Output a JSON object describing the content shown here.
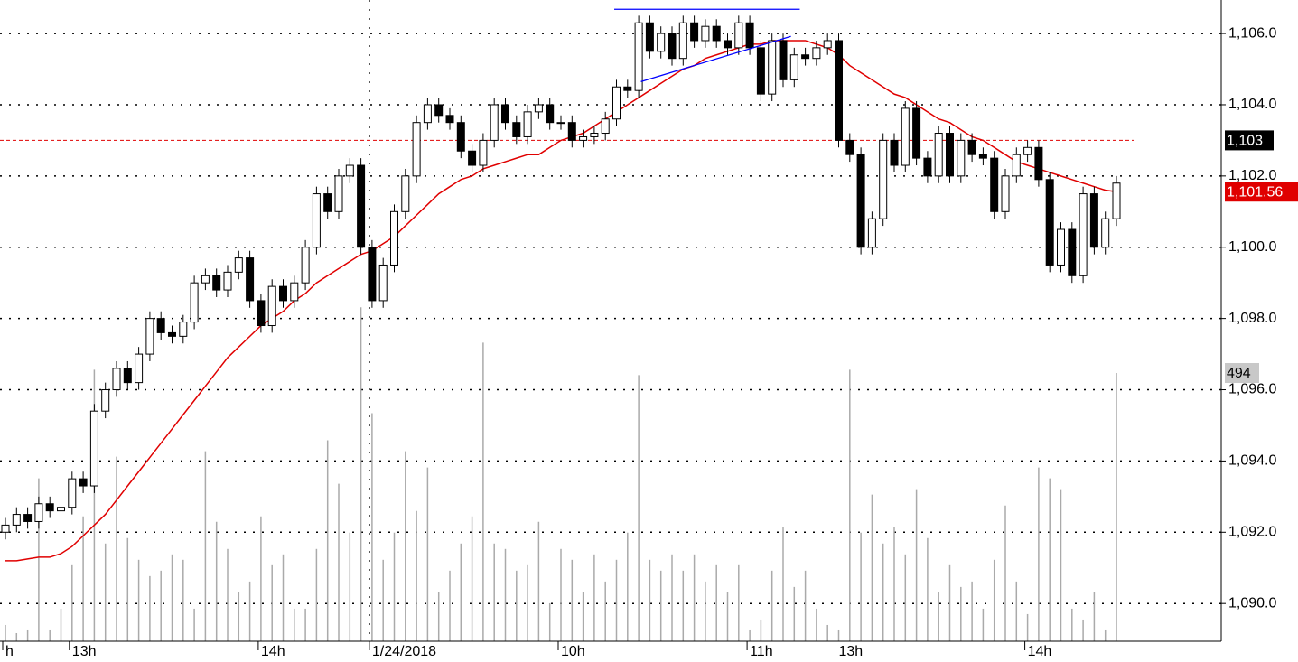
{
  "chart_data": {
    "type": "candlestick",
    "categories": [
      "h",
      null,
      null,
      null,
      null,
      null,
      "13h",
      null,
      null,
      null,
      null,
      null,
      null,
      null,
      null,
      null,
      null,
      null,
      null,
      null,
      null,
      null,
      null,
      "14h",
      null,
      null,
      null,
      null,
      null,
      null,
      null,
      null,
      null,
      "1/24/2018",
      null,
      null,
      null,
      null,
      null,
      null,
      null,
      null,
      null,
      null,
      null,
      null,
      null,
      null,
      null,
      null,
      "10h",
      null,
      null,
      null,
      null,
      null,
      null,
      null,
      null,
      null,
      null,
      null,
      null,
      null,
      null,
      null,
      null,
      "11h",
      null,
      null,
      null,
      null,
      null,
      null,
      null,
      "13h",
      null,
      null,
      null,
      null,
      null,
      null,
      null,
      null,
      null,
      null,
      null,
      null,
      null,
      null,
      null,
      null,
      "14h",
      null,
      null,
      null,
      null,
      null,
      null,
      null,
      null
    ],
    "open": [
      1092.0,
      1092.2,
      1092.5,
      1092.3,
      1092.8,
      1092.6,
      1092.7,
      1093.5,
      1093.3,
      1095.4,
      1096,
      1096.6,
      1096.2,
      1097,
      1098,
      1097.6,
      1097.5,
      1097.9,
      1099,
      1099.2,
      1098.8,
      1099.3,
      1099.7,
      1098.5,
      1097.8,
      1098.9,
      1098.5,
      1099,
      1100,
      1101.5,
      1101,
      1102,
      1102.3,
      1100,
      1098.5,
      1099.5,
      1101,
      1102,
      1103.5,
      1104,
      1103.7,
      1103.5,
      1102.7,
      1102.3,
      1103,
      1104,
      1103.5,
      1103.1,
      1103.8,
      1104,
      1103.5,
      1103.5,
      1103,
      1103.1,
      1103.2,
      1103.6,
      1104.5,
      1104.4,
      1106.3,
      1105.5,
      1106,
      1105.3,
      1106.3,
      1105.8,
      1106.2,
      1105.8,
      1105.6,
      1106.3,
      1105.6,
      1104.3,
      1105.8,
      1104.7,
      1105.4,
      1105.3,
      1105.6,
      1105.8,
      1103,
      1102.6,
      1100,
      1100.8,
      1103,
      1102.3,
      1103.9,
      1102.5,
      1102,
      1103.2,
      1102,
      1103,
      1102.6,
      1102.5,
      1101,
      1102,
      1102.6,
      1102.8,
      1101.9,
      1099.5,
      1100.5,
      1099.2,
      1101.5,
      1100,
      1100.8
    ],
    "high": [
      1092.4,
      1092.7,
      1092.7,
      1093.0,
      1093.0,
      1092.9,
      1093.7,
      1093.7,
      1095.6,
      1096.2,
      1096.8,
      1096.8,
      1097.2,
      1098.2,
      1098.2,
      1097.8,
      1098.1,
      1099.2,
      1099.4,
      1099.4,
      1099.5,
      1099.9,
      1099.9,
      1098.7,
      1099.1,
      1099.1,
      1099.2,
      1100.2,
      1101.7,
      1101.7,
      1102.2,
      1102.5,
      1102.5,
      1100.2,
      1099.7,
      1101.2,
      1102.2,
      1103.7,
      1104.2,
      1104.2,
      1103.9,
      1103.7,
      1102.9,
      1103.2,
      1104.2,
      1104.2,
      1103.7,
      1104.0,
      1104.2,
      1104.2,
      1103.7,
      1103.7,
      1103.3,
      1103.4,
      1103.8,
      1104.7,
      1104.7,
      1106.5,
      1106.5,
      1106.2,
      1106.2,
      1106.5,
      1106.5,
      1106.4,
      1106.4,
      1106.0,
      1106.5,
      1106.5,
      1105.8,
      1106.0,
      1106.0,
      1105.6,
      1105.6,
      1105.8,
      1106.0,
      1106.0,
      1103.2,
      1102.8,
      1101.0,
      1103.2,
      1103.2,
      1104.1,
      1104.1,
      1102.7,
      1103.4,
      1103.4,
      1103.2,
      1103.2,
      1102.8,
      1102.7,
      1102.2,
      1102.8,
      1103.0,
      1103.0,
      1102.1,
      1100.7,
      1100.7,
      1101.7,
      1101.7,
      1101.0,
      1102.0
    ],
    "low": [
      1091.8,
      1092.0,
      1092.1,
      1092.1,
      1092.4,
      1092.4,
      1092.5,
      1093.1,
      1093.1,
      1095.2,
      1095.8,
      1096.0,
      1096.0,
      1096.8,
      1097.4,
      1097.3,
      1097.3,
      1097.7,
      1098.8,
      1098.6,
      1098.6,
      1099.1,
      1098.3,
      1097.6,
      1097.6,
      1098.3,
      1098.3,
      1098.8,
      1099.8,
      1100.8,
      1100.8,
      1101.8,
      1099.8,
      1098.3,
      1098.3,
      1099.3,
      1100.8,
      1101.8,
      1103.3,
      1103.5,
      1103.3,
      1102.5,
      1102.1,
      1102.1,
      1102.8,
      1103.3,
      1102.9,
      1102.9,
      1103.6,
      1103.3,
      1103.3,
      1102.8,
      1102.8,
      1102.9,
      1103.0,
      1103.4,
      1104.2,
      1104.2,
      1105.3,
      1105.3,
      1105.1,
      1105.1,
      1105.6,
      1105.6,
      1105.6,
      1105.4,
      1105.4,
      1105.4,
      1104.1,
      1104.1,
      1104.5,
      1104.5,
      1105.1,
      1105.1,
      1105.4,
      1102.8,
      1102.4,
      1099.8,
      1099.8,
      1100.6,
      1102.1,
      1102.1,
      1102.3,
      1101.8,
      1101.8,
      1101.8,
      1101.8,
      1102.4,
      1102.3,
      1100.8,
      1100.8,
      1101.8,
      1102.4,
      1101.7,
      1099.3,
      1099.3,
      1099.0,
      1099.0,
      1099.8,
      1099.8,
      1100.6
    ],
    "close": [
      1092.2,
      1092.5,
      1092.3,
      1092.8,
      1092.6,
      1092.7,
      1093.5,
      1093.3,
      1095.4,
      1096,
      1096.6,
      1096.2,
      1097,
      1098,
      1097.6,
      1097.5,
      1097.9,
      1099,
      1099.2,
      1098.8,
      1099.3,
      1099.7,
      1098.5,
      1097.8,
      1098.9,
      1098.5,
      1099,
      1100,
      1101.5,
      1101,
      1102,
      1102.3,
      1100,
      1098.5,
      1099.5,
      1101,
      1102,
      1103.5,
      1104,
      1103.7,
      1103.5,
      1102.7,
      1102.3,
      1103,
      1104,
      1103.5,
      1103.1,
      1103.8,
      1104,
      1103.5,
      1103.5,
      1103,
      1103.1,
      1103.2,
      1103.6,
      1104.5,
      1104.4,
      1106.3,
      1105.5,
      1106,
      1105.3,
      1106.3,
      1105.8,
      1106.2,
      1105.8,
      1105.6,
      1106.3,
      1105.6,
      1104.3,
      1105.8,
      1104.7,
      1105.4,
      1105.3,
      1105.6,
      1105.8,
      1103,
      1102.6,
      1100,
      1100.8,
      1103,
      1102.3,
      1103.9,
      1102.5,
      1102,
      1103.2,
      1102,
      1103,
      1102.6,
      1102.5,
      1101,
      1102,
      1102.6,
      1102.8,
      1101.9,
      1099.5,
      1100.5,
      1099.2,
      1101.5,
      1100,
      1100.8,
      1101.8
    ],
    "up_color": "#ffffff",
    "down_color": "#000000",
    "moving_average": {
      "color": "#e00000",
      "values": [
        1091.2,
        1091.2,
        1091.25,
        1091.3,
        1091.3,
        1091.4,
        1091.6,
        1091.9,
        1092.2,
        1092.5,
        1092.9,
        1093.3,
        1093.7,
        1094.1,
        1094.5,
        1094.9,
        1095.3,
        1095.7,
        1096.1,
        1096.5,
        1096.9,
        1097.2,
        1097.5,
        1097.8,
        1098.0,
        1098.2,
        1098.5,
        1098.7,
        1099.0,
        1099.2,
        1099.4,
        1099.6,
        1099.8,
        1099.9,
        1100.1,
        1100.3,
        1100.6,
        1100.9,
        1101.2,
        1101.5,
        1101.7,
        1101.9,
        1102.0,
        1102.2,
        1102.3,
        1102.4,
        1102.5,
        1102.6,
        1102.6,
        1102.8,
        1103.0,
        1103.1,
        1103.2,
        1103.4,
        1103.6,
        1103.8,
        1104.0,
        1104.2,
        1104.4,
        1104.6,
        1104.8,
        1105.0,
        1105.1,
        1105.3,
        1105.4,
        1105.5,
        1105.6,
        1105.7,
        1105.7,
        1105.8,
        1105.8,
        1105.8,
        1105.8,
        1105.7,
        1105.6,
        1105.4,
        1105.1,
        1104.9,
        1104.7,
        1104.5,
        1104.3,
        1104.2,
        1104.0,
        1103.8,
        1103.6,
        1103.5,
        1103.3,
        1103.1,
        1103.0,
        1102.8,
        1102.6,
        1102.4,
        1102.3,
        1102.2,
        1102.1,
        1102.0,
        1101.9,
        1101.8,
        1101.7,
        1101.6,
        1101.56
      ]
    },
    "last_ma_label": {
      "value": 1101.56,
      "label": "1,101.56"
    },
    "volume": {
      "color": "#aaaaaa",
      "axis": "y2",
      "values": [
        30,
        15,
        20,
        300,
        20,
        60,
        140,
        230,
        500,
        180,
        340,
        190,
        150,
        120,
        130,
        160,
        150,
        60,
        350,
        220,
        170,
        90,
        110,
        230,
        140,
        160,
        60,
        60,
        170,
        370,
        290,
        200,
        615,
        420,
        150,
        200,
        350,
        240,
        320,
        90,
        130,
        180,
        230,
        550,
        180,
        170,
        130,
        140,
        220,
        70,
        170,
        150,
        90,
        160,
        110,
        150,
        200,
        490,
        150,
        130,
        160,
        130,
        160,
        110,
        140,
        90,
        140,
        20,
        40,
        130,
        210,
        100,
        130,
        60,
        30,
        20,
        500,
        200,
        270,
        180,
        210,
        160,
        280,
        190,
        90,
        140,
        100,
        110,
        60,
        150,
        250,
        110,
        50,
        320,
        300,
        280,
        60,
        40,
        90,
        20,
        494
      ]
    },
    "reference_line": {
      "value": 1103,
      "label": "1,103",
      "color": "#e00000"
    },
    "trendlines": [
      {
        "color": "#0000ff",
        "x": [
          54.8,
          71.5
        ],
        "y": [
          1106.68,
          1106.68
        ]
      },
      {
        "color": "#0000ff",
        "x": [
          57.2,
          70.7
        ],
        "y": [
          1104.65,
          1105.92
        ]
      }
    ],
    "ylim": [
      1088.94,
      1106.94
    ],
    "y2lim": [
      0,
      1181
    ],
    "yticks": [
      {
        "value": 1090,
        "label": "1,090.0"
      },
      {
        "value": 1092,
        "label": "1,092.0"
      },
      {
        "value": 1094,
        "label": "1,094.0"
      },
      {
        "value": 1096,
        "label": "1,096.0"
      },
      {
        "value": 1098,
        "label": "1,098.0"
      },
      {
        "value": 1100,
        "label": "1,100.0"
      },
      {
        "value": 1102,
        "label": "1,102.0"
      },
      {
        "value": 1104,
        "label": "1,104.0"
      },
      {
        "value": 1106,
        "label": "1,106.0"
      }
    ],
    "grid": true
  }
}
